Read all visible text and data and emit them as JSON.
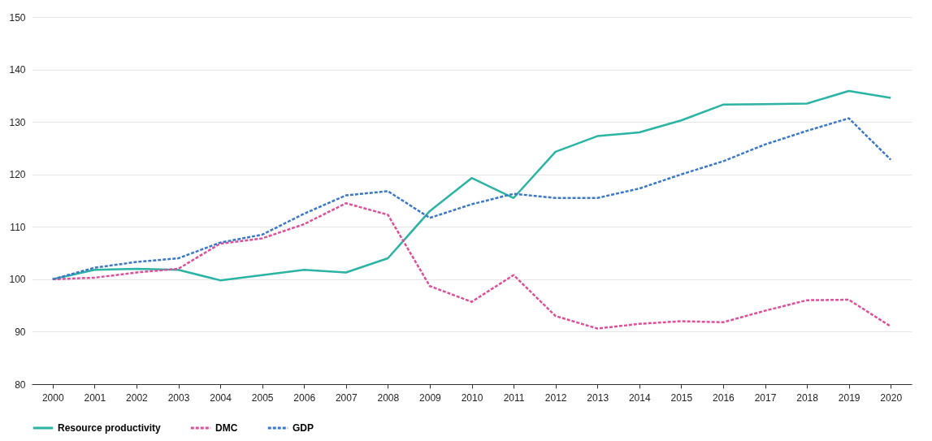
{
  "chart_data": {
    "type": "line",
    "categories": [
      "2000",
      "2001",
      "2002",
      "2003",
      "2004",
      "2005",
      "2006",
      "2007",
      "2008",
      "2009",
      "2010",
      "2011",
      "2012",
      "2013",
      "2014",
      "2015",
      "2016",
      "2017",
      "2018",
      "2019",
      "2020"
    ],
    "series": [
      {
        "name": "Resource productivity",
        "color": "#2bb3a3",
        "line_style": "solid",
        "values": [
          100,
          101.8,
          102,
          101.8,
          99.8,
          100.8,
          101.8,
          101.3,
          104,
          113,
          119.3,
          115.5,
          124.3,
          127.3,
          128,
          130.3,
          133.3,
          133.4,
          133.5,
          135.9,
          134.6
        ]
      },
      {
        "name": "DMC",
        "color": "#de4f9a",
        "line_style": "dashed",
        "values": [
          100,
          100.3,
          101.3,
          102,
          106.8,
          107.8,
          110.5,
          114.5,
          112.3,
          98.7,
          95.7,
          100.8,
          93,
          90.6,
          91.5,
          92,
          91.8,
          94,
          96,
          96.1,
          91
        ]
      },
      {
        "name": "GDP",
        "color": "#3b78c6",
        "line_style": "dashed",
        "values": [
          100,
          102.2,
          103.3,
          104,
          107,
          108.5,
          112.5,
          116,
          116.8,
          111.7,
          114.3,
          116.3,
          115.5,
          115.5,
          117.3,
          120,
          122.5,
          125.7,
          128.3,
          130.7,
          122.8
        ]
      }
    ],
    "ylim": [
      80,
      150
    ],
    "yticks": [
      80,
      90,
      100,
      110,
      120,
      130,
      140,
      150
    ],
    "grid": "y",
    "legend": "bottom"
  }
}
